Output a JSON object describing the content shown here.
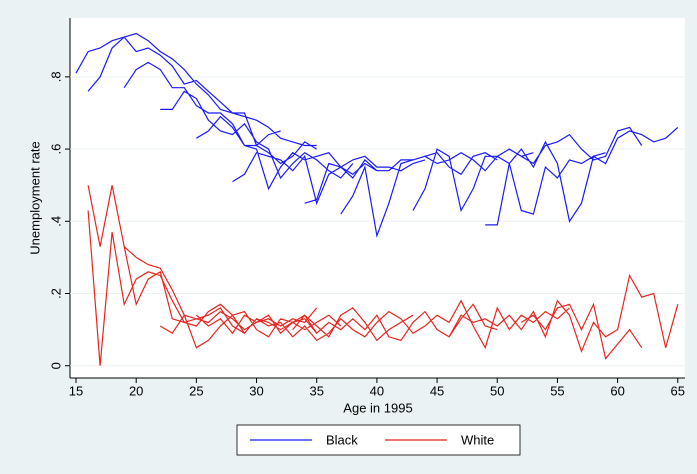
{
  "chart_data": {
    "type": "line",
    "x_label": "Age in 1995",
    "y_label": "Unemployment rate",
    "xlim": [
      14.5,
      65.6
    ],
    "xticks": [
      15,
      20,
      25,
      30,
      35,
      40,
      45,
      50,
      55,
      60,
      65
    ],
    "ylim": [
      -0.034,
      0.963
    ],
    "yticks": [
      0,
      {
        "value": 0.2,
        "label": ".2"
      },
      {
        "value": 0.4,
        "label": ".4"
      },
      {
        "value": 0.6,
        "label": ".6"
      },
      {
        "value": 0.8,
        "label": ".8"
      }
    ],
    "grid": true,
    "legend": "bottom",
    "series": [
      {
        "name": "Black",
        "color": "#1a1aff",
        "x": [
          15,
          16,
          17,
          18,
          19,
          20,
          21,
          22,
          23,
          24,
          25,
          26,
          27,
          28,
          29,
          30,
          31,
          32,
          33,
          34,
          35,
          null,
          16,
          17,
          18,
          19,
          20,
          21,
          22,
          23,
          24,
          25,
          26,
          27,
          28,
          29,
          30,
          31,
          32,
          null,
          19,
          20,
          21,
          22,
          23,
          24,
          25,
          26,
          27,
          28,
          29,
          30,
          31,
          32,
          33,
          34,
          35,
          null,
          22,
          23,
          24,
          25,
          26,
          27,
          28,
          29,
          30,
          31,
          32,
          33,
          34,
          35,
          36,
          37,
          38,
          null,
          25,
          26,
          27,
          28,
          29,
          30,
          31,
          32,
          33,
          34,
          35,
          36,
          37,
          38,
          39,
          40,
          41,
          null,
          28,
          29,
          30,
          31,
          32,
          33,
          34,
          35,
          36,
          37,
          38,
          39,
          40,
          41,
          42,
          43,
          44,
          null,
          34,
          35,
          36,
          37,
          38,
          39,
          40,
          41,
          42,
          43,
          44,
          45,
          46,
          47,
          48,
          49,
          50,
          null,
          37,
          38,
          39,
          40,
          41,
          42,
          43,
          44,
          45,
          46,
          47,
          48,
          49,
          50,
          51,
          52,
          53,
          null,
          43,
          44,
          45,
          46,
          47,
          48,
          49,
          50,
          51,
          52,
          53,
          54,
          55,
          56,
          57,
          58,
          59,
          null,
          49,
          50,
          51,
          52,
          53,
          54,
          55,
          56,
          57,
          58,
          59,
          60,
          61,
          62,
          63,
          64,
          65,
          null,
          52,
          53,
          54,
          55,
          56,
          57,
          58,
          59,
          60,
          61,
          62
        ],
        "values": [
          0.81,
          0.87,
          0.88,
          0.9,
          0.91,
          0.92,
          0.9,
          0.87,
          0.85,
          0.82,
          0.78,
          0.75,
          0.71,
          0.7,
          0.69,
          0.68,
          0.66,
          0.63,
          0.62,
          0.61,
          0.61,
          null,
          0.76,
          0.8,
          0.88,
          0.91,
          0.87,
          0.88,
          0.86,
          0.83,
          0.78,
          0.79,
          0.76,
          0.73,
          0.7,
          0.7,
          0.61,
          0.64,
          0.65,
          null,
          0.77,
          0.82,
          0.84,
          0.82,
          0.77,
          0.77,
          0.72,
          0.7,
          0.7,
          0.67,
          0.61,
          0.61,
          0.59,
          0.56,
          0.58,
          0.62,
          0.6,
          null,
          0.71,
          0.71,
          0.76,
          0.74,
          0.68,
          0.65,
          0.64,
          0.67,
          0.62,
          0.6,
          0.52,
          0.56,
          0.59,
          0.57,
          0.54,
          0.52,
          0.56,
          null,
          0.63,
          0.65,
          0.69,
          0.66,
          0.61,
          0.6,
          0.49,
          0.55,
          0.59,
          0.57,
          0.58,
          0.59,
          0.55,
          0.52,
          0.57,
          0.54,
          0.54,
          null,
          0.51,
          0.53,
          0.59,
          0.58,
          0.57,
          0.54,
          0.58,
          0.45,
          0.53,
          0.55,
          0.57,
          0.58,
          0.55,
          0.55,
          0.54,
          0.56,
          0.57,
          null,
          0.45,
          0.46,
          0.56,
          0.55,
          0.53,
          0.56,
          0.54,
          0.54,
          0.57,
          0.57,
          0.58,
          0.59,
          0.55,
          0.53,
          0.58,
          0.59,
          0.57,
          null,
          0.42,
          0.47,
          0.55,
          0.36,
          0.45,
          0.56,
          0.57,
          0.58,
          0.56,
          0.57,
          0.59,
          0.57,
          0.54,
          0.58,
          0.6,
          0.58,
          0.59,
          null,
          0.43,
          0.49,
          0.6,
          0.58,
          0.43,
          0.49,
          0.58,
          0.58,
          0.56,
          0.43,
          0.42,
          0.55,
          0.52,
          0.57,
          0.56,
          0.58,
          0.59,
          null,
          0.39,
          0.39,
          0.56,
          0.6,
          0.55,
          0.62,
          0.56,
          0.4,
          0.45,
          0.58,
          0.56,
          0.63,
          0.65,
          0.64,
          0.62,
          0.63,
          0.66,
          null,
          0.58,
          0.56,
          0.61,
          0.62,
          0.64,
          0.6,
          0.57,
          0.58,
          0.65,
          0.66,
          0.61
        ]
      },
      {
        "name": "White",
        "color": "#e8251f",
        "x": [
          16,
          17,
          18,
          19,
          20,
          21,
          22,
          23,
          24,
          25,
          26,
          27,
          28,
          29,
          30,
          31,
          32,
          33,
          34,
          35,
          null,
          16,
          17,
          18,
          19,
          20,
          21,
          22,
          23,
          24,
          25,
          26,
          27,
          28,
          29,
          30,
          31,
          32,
          33,
          34,
          35,
          null,
          19,
          20,
          21,
          22,
          23,
          24,
          25,
          26,
          27,
          28,
          29,
          30,
          31,
          32,
          33,
          34,
          35,
          36,
          37,
          null,
          22,
          23,
          24,
          25,
          26,
          27,
          28,
          29,
          30,
          31,
          32,
          33,
          34,
          35,
          36,
          37,
          38,
          39,
          40,
          null,
          25,
          26,
          27,
          28,
          29,
          30,
          31,
          32,
          33,
          34,
          35,
          36,
          37,
          38,
          39,
          40,
          41,
          42,
          43,
          null,
          33,
          34,
          35,
          36,
          37,
          38,
          39,
          40,
          41,
          42,
          43,
          44,
          45,
          46,
          47,
          48,
          49,
          50,
          null,
          40,
          41,
          42,
          43,
          44,
          45,
          46,
          47,
          48,
          49,
          50,
          51,
          52,
          53,
          54,
          55,
          56,
          null,
          46,
          47,
          48,
          49,
          50,
          51,
          52,
          53,
          54,
          55,
          56,
          57,
          58,
          59,
          60,
          61,
          62,
          63,
          64,
          65,
          null,
          52,
          53,
          54,
          55,
          56,
          57,
          58,
          59,
          60,
          61,
          62
        ],
        "values": [
          0.5,
          0.33,
          0.5,
          0.33,
          0.3,
          0.28,
          0.27,
          0.21,
          0.14,
          0.13,
          0.12,
          0.15,
          0.13,
          0.1,
          0.12,
          0.13,
          0.11,
          0.13,
          0.12,
          0.16,
          null,
          0.43,
          0,
          0.37,
          0.17,
          0.24,
          0.26,
          0.25,
          0.18,
          0.12,
          0.13,
          0.14,
          0.16,
          0.11,
          0.09,
          0.13,
          0.12,
          0.1,
          0.12,
          0.13,
          0.09,
          null,
          0.33,
          0.17,
          0.24,
          0.26,
          0.13,
          0.12,
          0.11,
          0.15,
          0.17,
          0.14,
          0.15,
          0.1,
          0.08,
          0.13,
          0.12,
          0.1,
          0.12,
          0.14,
          0.11,
          null,
          0.11,
          0.09,
          0.14,
          0.05,
          0.07,
          0.11,
          0.14,
          0.09,
          0.13,
          0.11,
          0.12,
          0.08,
          0.11,
          0.07,
          0.09,
          0.13,
          0.1,
          0.08,
          0.12,
          null,
          0.14,
          0.11,
          0.13,
          0.09,
          0.14,
          0.12,
          0.14,
          0.09,
          0.12,
          0.14,
          0.11,
          0.08,
          0.14,
          0.16,
          0.12,
          0.07,
          0.1,
          0.12,
          0.14,
          null,
          0.1,
          0.14,
          0.09,
          0.12,
          0.1,
          0.13,
          0.1,
          0.14,
          0.08,
          0.07,
          0.12,
          0.15,
          0.1,
          0.08,
          0.13,
          0.17,
          0.11,
          0.1,
          null,
          0.12,
          0.15,
          0.13,
          0.09,
          0.11,
          0.14,
          0.12,
          0.18,
          0.11,
          0.05,
          0.16,
          0.1,
          0.14,
          0.12,
          0.15,
          0.13,
          0.16,
          null,
          0.08,
          0.14,
          0.12,
          0.13,
          0.11,
          0.14,
          0.1,
          0.15,
          0.08,
          0.18,
          0.14,
          0.04,
          0.12,
          0.08,
          0.1,
          0.25,
          0.19,
          0.2,
          0.05,
          0.17,
          null,
          0.12,
          0.14,
          0.1,
          0.16,
          0.17,
          0.1,
          0.17,
          0.02,
          0.06,
          0.1,
          0.05
        ]
      }
    ]
  }
}
